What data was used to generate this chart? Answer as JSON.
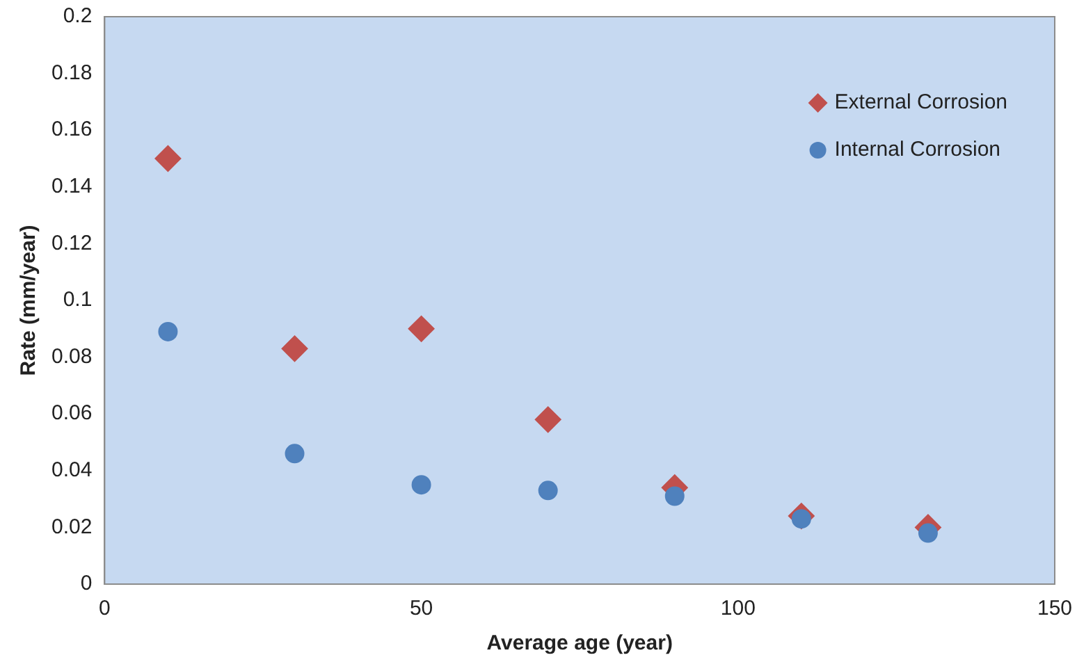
{
  "chart_data": {
    "type": "scatter",
    "xlabel": "Average age (year)",
    "ylabel": "Rate (mm/year)",
    "xlim": [
      0,
      150
    ],
    "xticks": [
      0,
      50,
      100,
      150
    ],
    "ylim": [
      0,
      0.2
    ],
    "yticks": [
      0,
      0.02,
      0.04,
      0.06,
      0.08,
      0.1,
      0.12,
      0.14,
      0.16,
      0.18,
      0.2
    ],
    "grid": false,
    "legend": "top right",
    "series": [
      {
        "name": "External Corrosion",
        "color": "#c0504d",
        "marker": "diamond",
        "x": [
          10,
          30,
          50,
          70,
          90,
          110,
          130
        ],
        "values": [
          0.15,
          0.083,
          0.09,
          0.058,
          0.034,
          0.024,
          0.02
        ]
      },
      {
        "name": "Internal Corrosion",
        "color": "#4f81bd",
        "marker": "circle",
        "x": [
          10,
          30,
          50,
          70,
          90,
          110,
          130
        ],
        "values": [
          0.089,
          0.046,
          0.035,
          0.033,
          0.031,
          0.023,
          0.018
        ]
      }
    ]
  }
}
